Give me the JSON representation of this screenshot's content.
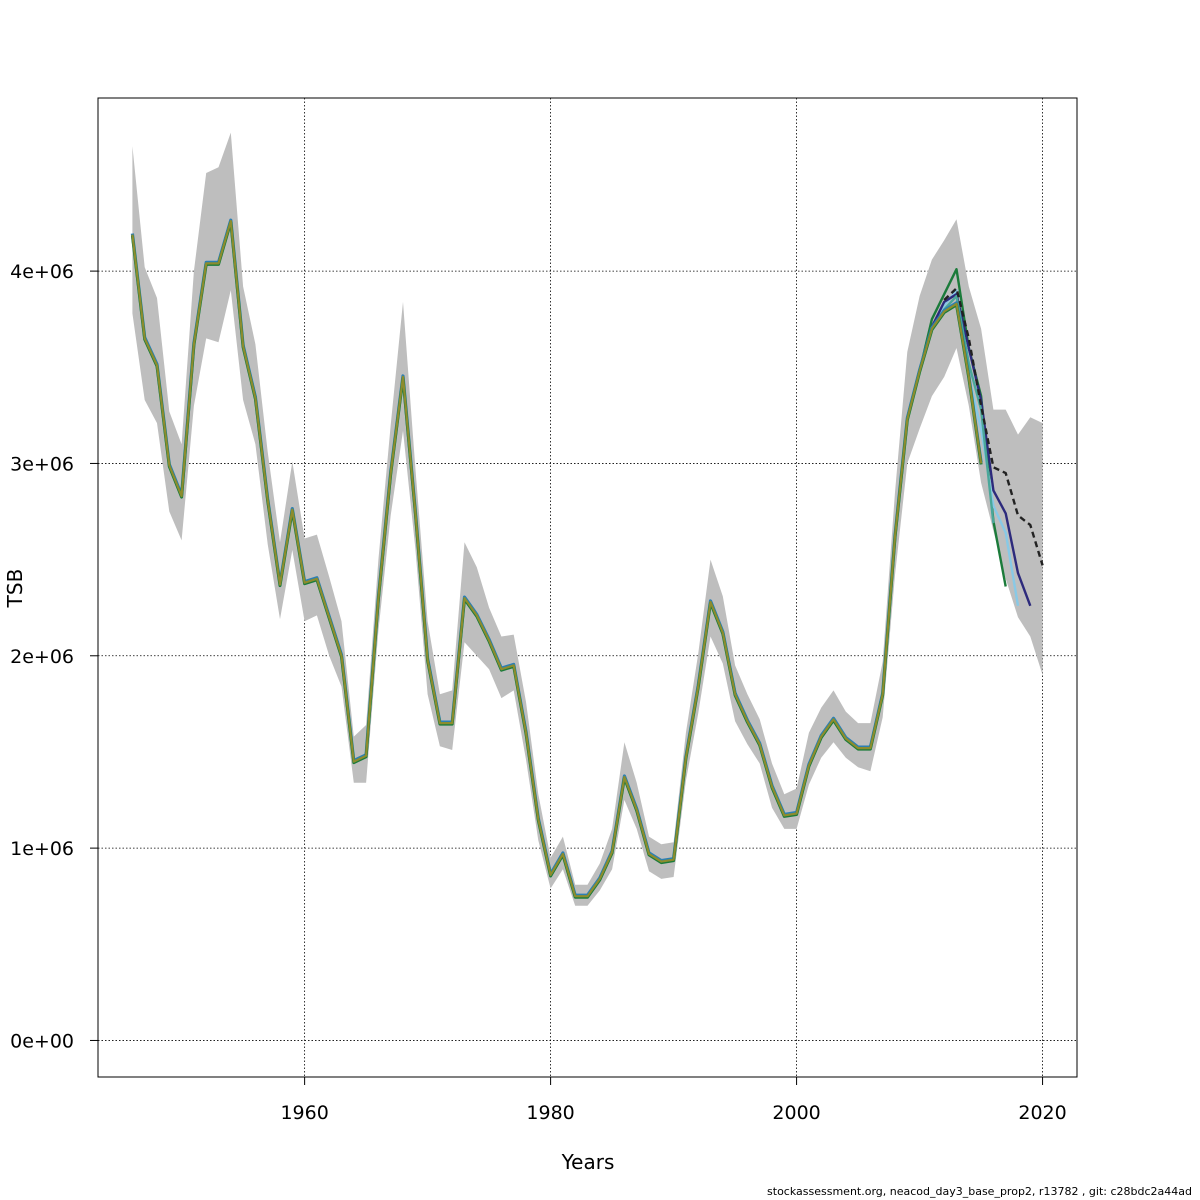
{
  "chart_data": {
    "type": "line",
    "title": "",
    "xlabel": "Years",
    "ylabel": "TSB",
    "xlim": [
      1943.2,
      2022.8
    ],
    "ylim": [
      -190000,
      4900000
    ],
    "grid": true,
    "x_ticks": [
      1960,
      1980,
      2000,
      2020
    ],
    "x_tick_labels": [
      "1960",
      "1980",
      "2000",
      "2020"
    ],
    "y_ticks": [
      0,
      1000000,
      2000000,
      3000000,
      4000000
    ],
    "y_tick_labels": [
      "0e+00",
      "1e+06",
      "2e+06",
      "3e+06",
      "4e+06"
    ],
    "band_color": "#bebebe",
    "main_color": "#8c8c2e",
    "years": [
      1946,
      1947,
      1948,
      1949,
      1950,
      1951,
      1952,
      1953,
      1954,
      1955,
      1956,
      1957,
      1958,
      1959,
      1960,
      1961,
      1962,
      1963,
      1964,
      1965,
      1966,
      1967,
      1968,
      1969,
      1970,
      1971,
      1972,
      1973,
      1974,
      1975,
      1976,
      1977,
      1978,
      1979,
      1980,
      1981,
      1982,
      1983,
      1984,
      1985,
      1986,
      1987,
      1988,
      1989,
      1990,
      1991,
      1992,
      1993,
      1994,
      1995,
      1996,
      1997,
      1998,
      1999,
      2000,
      2001,
      2002,
      2003,
      2004,
      2005,
      2006,
      2007,
      2008,
      2009,
      2010,
      2011,
      2012,
      2013,
      2014,
      2015
    ],
    "tsb": [
      4190000,
      3650000,
      3510000,
      2990000,
      2830000,
      3620000,
      4040000,
      4040000,
      4260000,
      3610000,
      3340000,
      2810000,
      2370000,
      2760000,
      2380000,
      2400000,
      2200000,
      2000000,
      1450000,
      1480000,
      2300000,
      2950000,
      3450000,
      2750000,
      1980000,
      1650000,
      1650000,
      2300000,
      2210000,
      2080000,
      1930000,
      1950000,
      1600000,
      1150000,
      860000,
      970000,
      750000,
      750000,
      840000,
      980000,
      1370000,
      1200000,
      970000,
      930000,
      940000,
      1470000,
      1840000,
      2280000,
      2120000,
      1800000,
      1660000,
      1540000,
      1320000,
      1170000,
      1180000,
      1430000,
      1580000,
      1670000,
      1570000,
      1520000,
      1520000,
      1800000,
      2620000,
      3230000,
      3480000,
      3700000,
      3790000,
      3830000,
      3450000,
      3000000
    ],
    "tsb_low": [
      3780000,
      3330000,
      3210000,
      2750000,
      2600000,
      3300000,
      3650000,
      3630000,
      3900000,
      3330000,
      3100000,
      2580000,
      2190000,
      2550000,
      2180000,
      2210000,
      2000000,
      1840000,
      1340000,
      1340000,
      2130000,
      2730000,
      3170000,
      2560000,
      1800000,
      1530000,
      1510000,
      2070000,
      2000000,
      1930000,
      1780000,
      1820000,
      1460000,
      1040000,
      790000,
      890000,
      700000,
      700000,
      780000,
      890000,
      1250000,
      1100000,
      880000,
      840000,
      850000,
      1350000,
      1700000,
      2100000,
      1960000,
      1660000,
      1540000,
      1440000,
      1210000,
      1100000,
      1100000,
      1330000,
      1470000,
      1550000,
      1470000,
      1420000,
      1400000,
      1680000,
      2420000,
      3000000,
      3180000,
      3350000,
      3450000,
      3600000,
      3300000,
      2900000
    ],
    "tsb_high": [
      4650000,
      4020000,
      3860000,
      3270000,
      3100000,
      4000000,
      4510000,
      4540000,
      4720000,
      3920000,
      3620000,
      3060000,
      2590000,
      3010000,
      2610000,
      2630000,
      2410000,
      2180000,
      1580000,
      1640000,
      2500000,
      3200000,
      3840000,
      2980000,
      2180000,
      1800000,
      1820000,
      2590000,
      2460000,
      2250000,
      2100000,
      2110000,
      1760000,
      1280000,
      950000,
      1060000,
      810000,
      810000,
      920000,
      1100000,
      1550000,
      1340000,
      1060000,
      1020000,
      1030000,
      1600000,
      2010000,
      2500000,
      2310000,
      1950000,
      1800000,
      1670000,
      1440000,
      1280000,
      1310000,
      1600000,
      1730000,
      1820000,
      1710000,
      1650000,
      1650000,
      1970000,
      2850000,
      3580000,
      3870000,
      4060000,
      4160000,
      4270000,
      3920000,
      3700000
    ],
    "band_tail_years": [
      2015,
      2016,
      2017,
      2018,
      2019,
      2020
    ],
    "band_tail_low": [
      2900000,
      2650000,
      2400000,
      2200000,
      2100000,
      1900000
    ],
    "band_tail_high": [
      3700000,
      3280000,
      3280000,
      3150000,
      3240000,
      3210000
    ],
    "retro": [
      {
        "color": "#1b7b3a",
        "x": [
          2010,
          2011,
          2012,
          2013,
          2014,
          2015,
          2016,
          2017
        ],
        "values": [
          3480000,
          3750000,
          3880000,
          4010000,
          3600000,
          3350000,
          2700000,
          2360000
        ]
      },
      {
        "color": "#88c9e6",
        "x": [
          2010,
          2011,
          2012,
          2013,
          2014,
          2015,
          2016,
          2017,
          2018
        ],
        "values": [
          3480000,
          3700000,
          3820000,
          3900000,
          3450000,
          3180000,
          2780000,
          2640000,
          2260000
        ]
      },
      {
        "color": "#2d2a7c",
        "x": [
          2010,
          2011,
          2012,
          2013,
          2014,
          2015,
          2016,
          2017,
          2018,
          2019
        ],
        "values": [
          3480000,
          3710000,
          3840000,
          3880000,
          3600000,
          3330000,
          2860000,
          2740000,
          2430000,
          2260000
        ]
      },
      {
        "color": "#4aa79a",
        "x": [
          2010,
          2011,
          2012,
          2013,
          2014,
          2015,
          2016
        ],
        "values": [
          3480000,
          3700000,
          3800000,
          3870000,
          3520000,
          3280000,
          2690000
        ]
      },
      {
        "color": "#222222",
        "dashed": true,
        "x": [
          2012,
          2013,
          2014,
          2015,
          2016,
          2017,
          2018,
          2019,
          2020
        ],
        "values": [
          3850000,
          3910000,
          3650000,
          3300000,
          2980000,
          2950000,
          2730000,
          2680000,
          2470000
        ]
      }
    ]
  },
  "footer": "stockassessment.org, neacod_day3_base_prop2, r13782 , git: c28bdc2a44ad"
}
